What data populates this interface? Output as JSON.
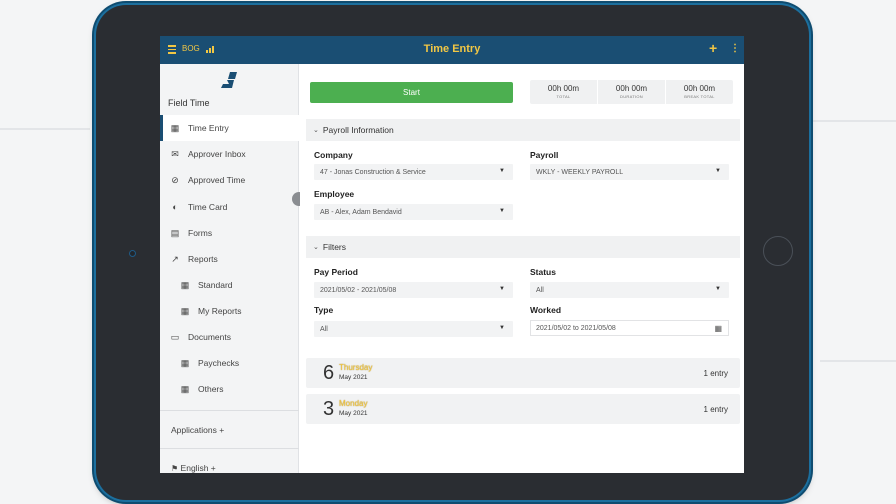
{
  "app": {
    "brand": "BOG",
    "title": "Time Entry",
    "plus_icon": "plus-icon",
    "more_icon": "kebab-icon",
    "accent": "#f2c744",
    "topbar_color": "#1a4e73"
  },
  "sidebar": {
    "heading": "Field Time",
    "items": [
      {
        "label": "Time Entry",
        "icon": "calendar-icon",
        "active": true
      },
      {
        "label": "Approver Inbox",
        "icon": "inbox-icon"
      },
      {
        "label": "Approved Time",
        "icon": "check-circle-icon"
      },
      {
        "label": "Time Card",
        "icon": "time-card-icon"
      },
      {
        "label": "Forms",
        "icon": "document-icon"
      },
      {
        "label": "Reports",
        "icon": "chart-icon"
      },
      {
        "label": "Standard",
        "icon": "grid-icon"
      },
      {
        "label": "My Reports",
        "icon": "grid-icon"
      },
      {
        "label": "Documents",
        "icon": "folder-icon"
      },
      {
        "label": "Paychecks",
        "icon": "grid-icon"
      },
      {
        "label": "Others",
        "icon": "grid-icon"
      }
    ],
    "applications": "Applications +",
    "language": "English +"
  },
  "main": {
    "start_label": "Start",
    "start_color": "#4caf50",
    "timers": [
      {
        "value": "00h 00m",
        "label": "TOTAL"
      },
      {
        "value": "00h 00m",
        "label": "DURATION"
      },
      {
        "value": "00h 00m",
        "label": "BREAK TOTAL"
      }
    ],
    "payroll_section": "Payroll Information",
    "company_label": "Company",
    "company_value": "47 - Jonas Construction & Service",
    "payroll_label": "Payroll",
    "payroll_value": "WKLY - WEEKLY PAYROLL",
    "employee_label": "Employee",
    "employee_value": "AB - Alex, Adam Bendavid",
    "filters_section": "Filters",
    "pay_period_label": "Pay Period",
    "pay_period_value": "2021/05/02 - 2021/05/08",
    "status_label": "Status",
    "status_value": "All",
    "type_label": "Type",
    "type_value": "All",
    "worked_label": "Worked",
    "worked_value": "2021/05/02 to 2021/05/08",
    "days": [
      {
        "num": "6",
        "day": "Thursday",
        "month": "May 2021",
        "entries": "1 entry"
      },
      {
        "num": "3",
        "day": "Monday",
        "month": "May 2021",
        "entries": "1 entry"
      }
    ]
  }
}
